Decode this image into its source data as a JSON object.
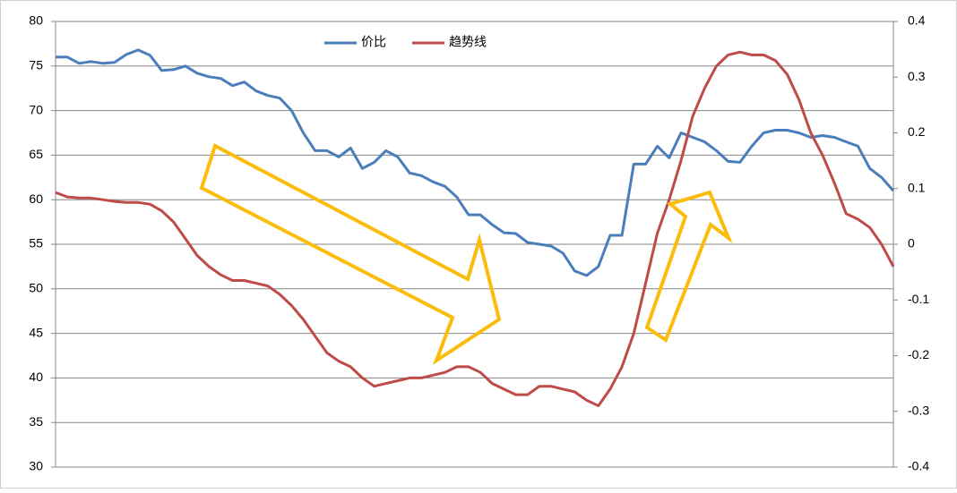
{
  "chart_data": {
    "type": "line",
    "categories": [
      null,
      null,
      null,
      null,
      null,
      null,
      null,
      null,
      null,
      null,
      null,
      null,
      null,
      null,
      null,
      null,
      null,
      null,
      null,
      null,
      null,
      null,
      null,
      null,
      null,
      null,
      null,
      null,
      null,
      null,
      null,
      null,
      null,
      null,
      null,
      null,
      null,
      null,
      null,
      null,
      null,
      null,
      null,
      null,
      null,
      null,
      null,
      null,
      null,
      null,
      null,
      null,
      null,
      null,
      null,
      null,
      null,
      null,
      null,
      null,
      null,
      null,
      null,
      null,
      null,
      null,
      null,
      null,
      null,
      null,
      null,
      null
    ],
    "series": [
      {
        "name": "价比",
        "color": "#4a7ebb",
        "values": [
          76,
          76,
          75.3,
          75.5,
          75.3,
          75.4,
          76.3,
          76.8,
          76.2,
          74.5,
          74.6,
          75,
          74.2,
          73.8,
          73.6,
          72.8,
          73.2,
          72.2,
          71.7,
          71.4,
          70,
          67.5,
          65.5,
          65.5,
          64.8,
          65.8,
          63.5,
          64.2,
          65.5,
          64.8,
          63,
          62.7,
          62,
          61.5,
          60.3,
          58.3,
          58.3,
          57.2,
          56.3,
          56.2,
          55.2,
          55,
          54.8,
          54,
          52,
          51.5,
          52.5,
          56,
          56,
          64,
          64,
          66,
          64.7,
          67.5,
          67,
          66.5,
          65.5,
          64.3,
          64.2,
          66,
          67.5,
          67.8,
          67.8,
          67.5,
          67,
          67.2,
          67,
          66.5,
          66,
          63.5,
          62.5,
          61
        ]
      },
      {
        "name": "趋势线",
        "color": "#be4b48",
        "axis": "y2",
        "values": [
          0.093,
          0.085,
          0.083,
          0.083,
          0.08,
          0.077,
          0.075,
          0.075,
          0.072,
          0.06,
          0.04,
          0.01,
          -0.02,
          -0.04,
          -0.055,
          -0.065,
          -0.065,
          -0.07,
          -0.075,
          -0.09,
          -0.11,
          -0.135,
          -0.165,
          -0.195,
          -0.21,
          -0.22,
          -0.24,
          -0.255,
          -0.25,
          -0.245,
          -0.24,
          -0.24,
          -0.235,
          -0.23,
          -0.22,
          -0.22,
          -0.23,
          -0.25,
          -0.26,
          -0.27,
          -0.27,
          -0.255,
          -0.255,
          -0.26,
          -0.265,
          -0.28,
          -0.29,
          -0.26,
          -0.22,
          -0.16,
          -0.07,
          0.02,
          0.08,
          0.15,
          0.23,
          0.28,
          0.32,
          0.34,
          0.345,
          0.34,
          0.34,
          0.33,
          0.305,
          0.26,
          0.2,
          0.16,
          0.11,
          0.055,
          0.045,
          0.03,
          0,
          -0.04
        ]
      }
    ],
    "ylim": [
      30,
      80
    ],
    "yticks": [
      30,
      35,
      40,
      45,
      50,
      55,
      60,
      65,
      70,
      75,
      80
    ],
    "y2lim": [
      -0.4,
      0.4
    ],
    "y2ticks": [
      -0.4,
      -0.3,
      -0.2,
      -0.1,
      0,
      0.1,
      0.2,
      0.3,
      0.4
    ],
    "grid": true,
    "legend": "top"
  }
}
